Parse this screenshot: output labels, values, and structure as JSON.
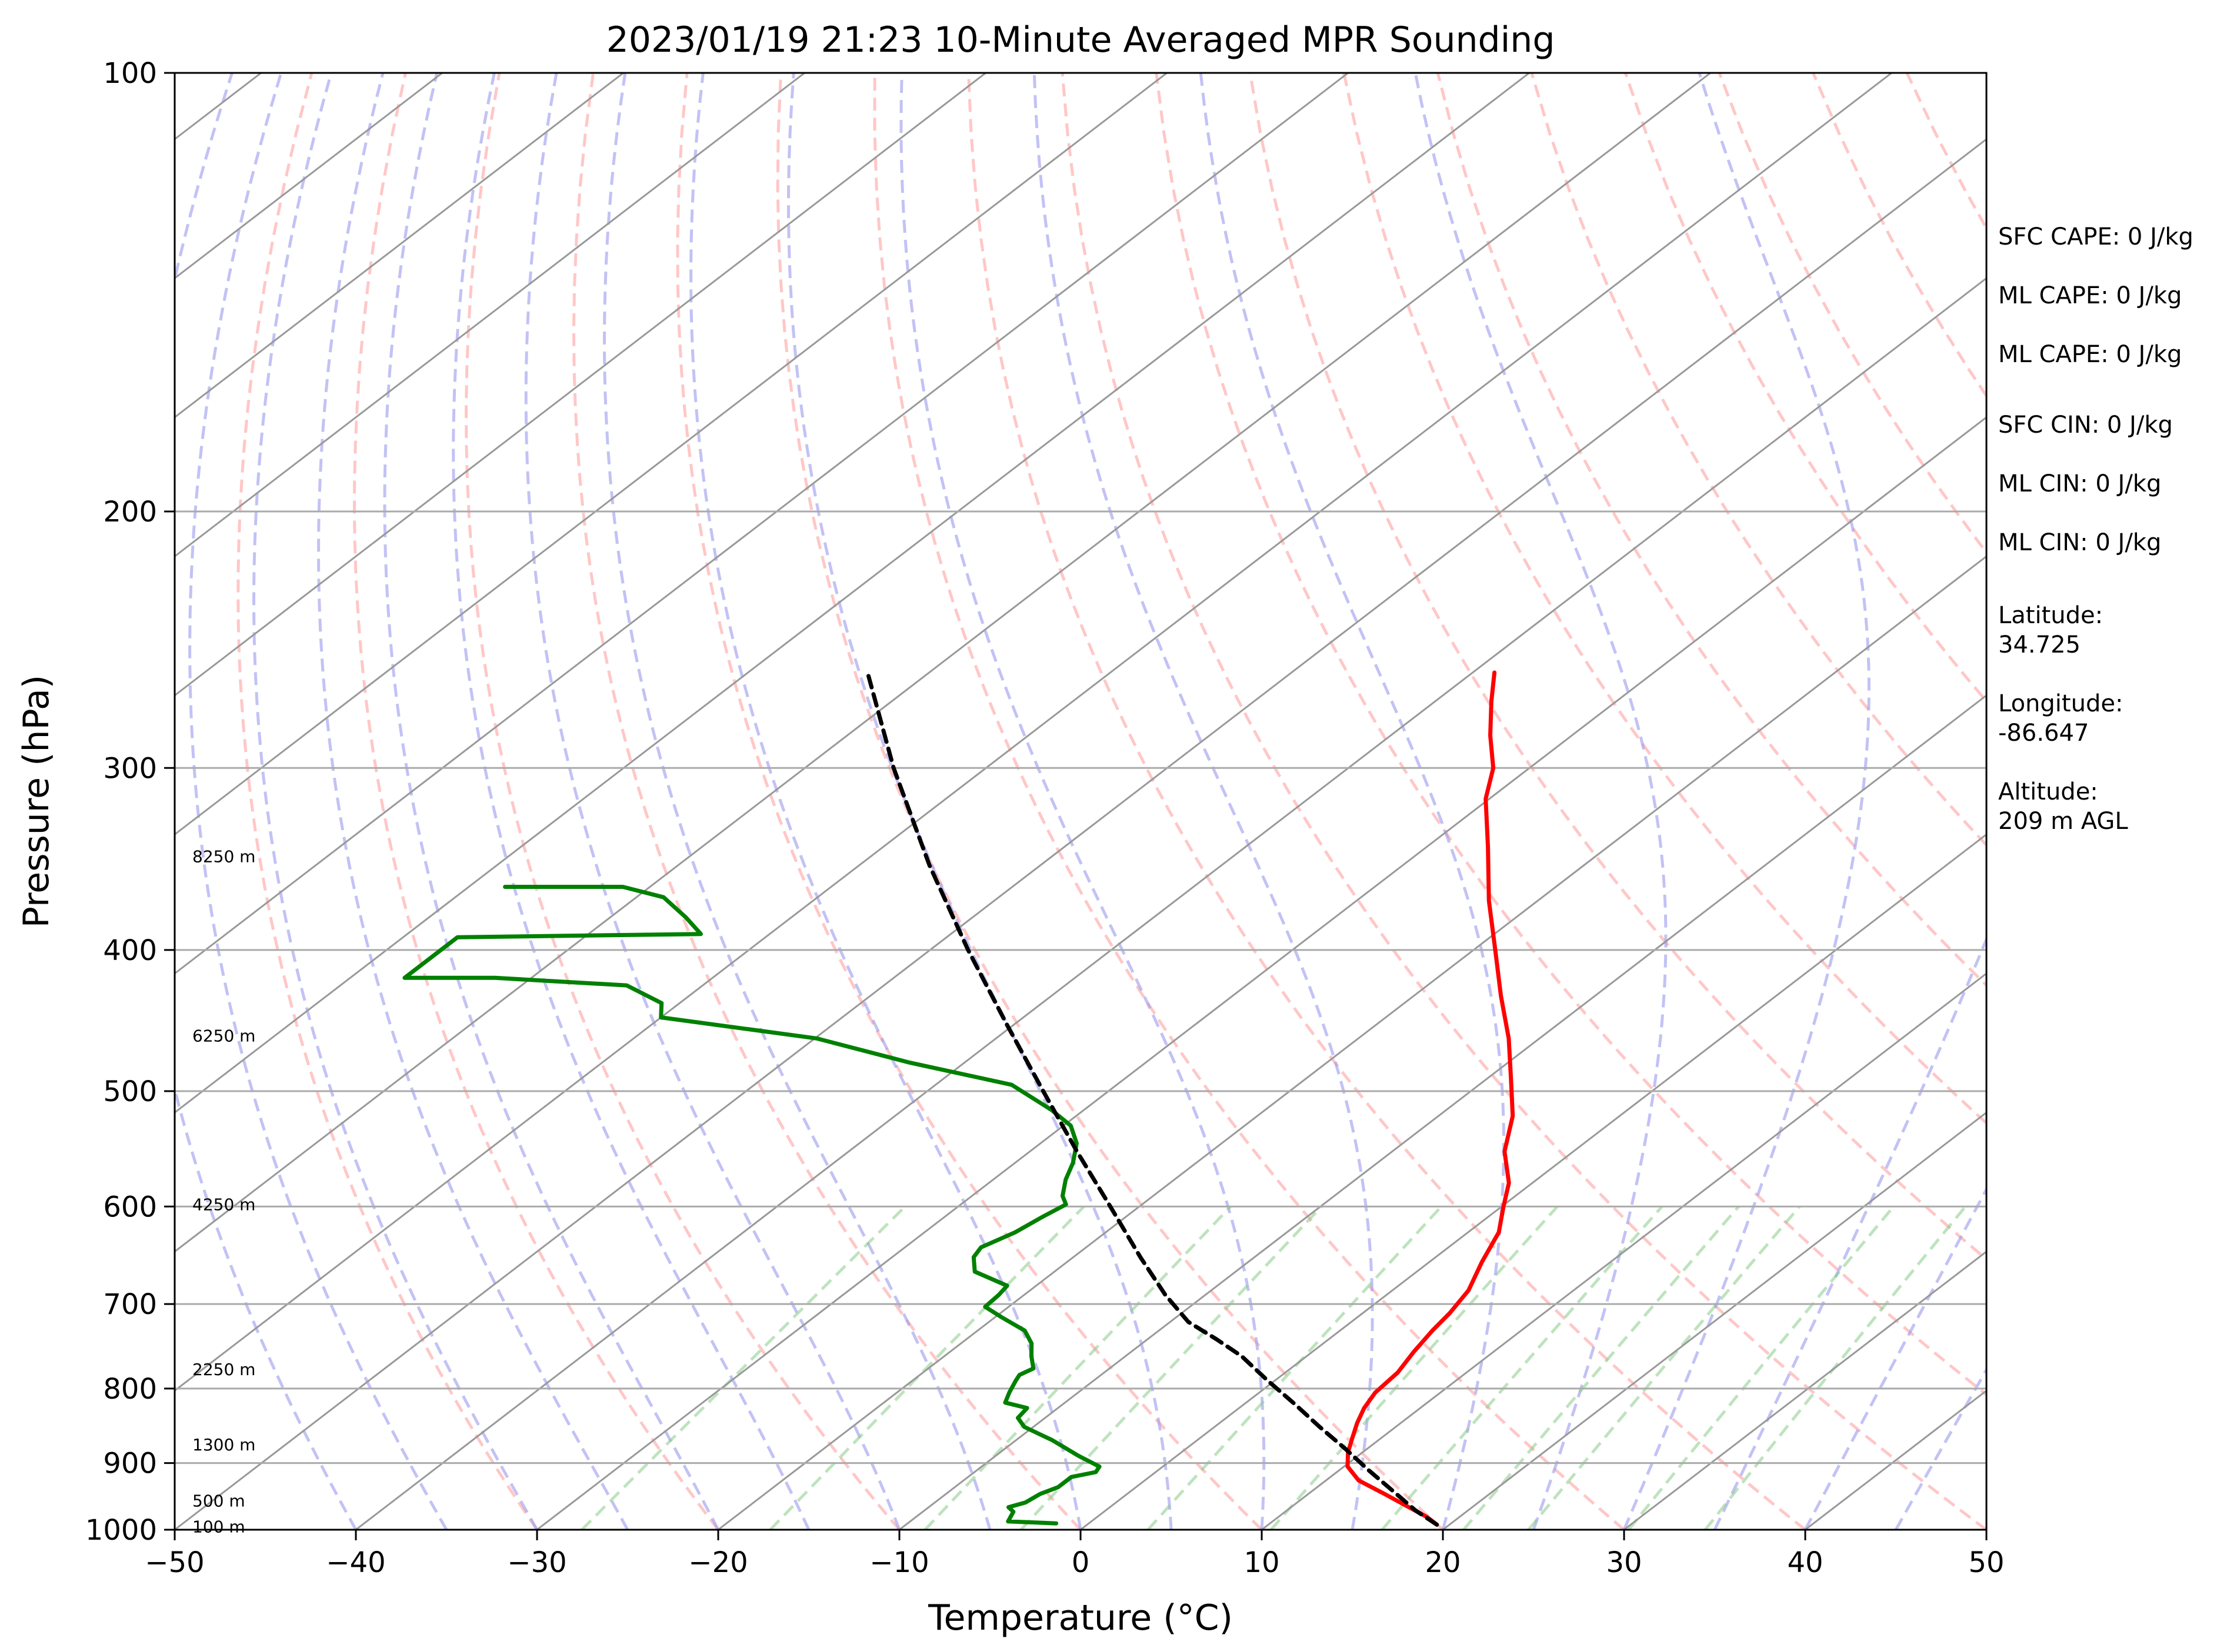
{
  "chart_data": {
    "type": "line",
    "subtype": "skew-T log-P",
    "title": "2023/01/19 21:23 10-Minute Averaged MPR Sounding",
    "xlabel": "Temperature (°C)",
    "ylabel": "Pressure (hPa)",
    "xlim": [
      -50,
      50
    ],
    "ylim": [
      1000,
      100
    ],
    "yscale": "log",
    "x_ticks": [
      "−50",
      "−40",
      "−30",
      "−20",
      "−10",
      "0",
      "10",
      "20",
      "30",
      "40",
      "50"
    ],
    "y_ticks": [
      "100",
      "200",
      "300",
      "400",
      "500",
      "600",
      "700",
      "800",
      "900",
      "1000"
    ],
    "grid": true,
    "colors": {
      "temperature": "#ff0000",
      "dewpoint": "#008000",
      "parcel": "#000000",
      "dry_adiabats": "#ff9999",
      "moist_adiabats": "#9999ee",
      "mixing_ratio": "#88cc88",
      "isotherms": "#999999"
    },
    "height_labels": [
      {
        "text": "8250 m",
        "p": 345
      },
      {
        "text": "6250 m",
        "p": 458
      },
      {
        "text": "4250 m",
        "p": 598
      },
      {
        "text": "2250 m",
        "p": 776
      },
      {
        "text": "1300 m",
        "p": 874
      },
      {
        "text": "500 m",
        "p": 955
      },
      {
        "text": "100 m",
        "p": 995
      }
    ],
    "series": [
      {
        "key": "temperature",
        "values": [
          {
            "p": 992,
            "t": 19.3
          },
          {
            "p": 980,
            "t": 18.2
          },
          {
            "p": 965,
            "t": 16.5
          },
          {
            "p": 945,
            "t": 14.2
          },
          {
            "p": 925,
            "t": 11.8
          },
          {
            "p": 905,
            "t": 10.2
          },
          {
            "p": 885,
            "t": 9.2
          },
          {
            "p": 865,
            "t": 8.4
          },
          {
            "p": 845,
            "t": 7.6
          },
          {
            "p": 825,
            "t": 6.9
          },
          {
            "p": 805,
            "t": 6.4
          },
          {
            "p": 780,
            "t": 6.2
          },
          {
            "p": 755,
            "t": 5.6
          },
          {
            "p": 730,
            "t": 5.1
          },
          {
            "p": 710,
            "t": 4.8
          },
          {
            "p": 685,
            "t": 4.2
          },
          {
            "p": 655,
            "t": 2.9
          },
          {
            "p": 625,
            "t": 1.7
          },
          {
            "p": 600,
            "t": 0.1
          },
          {
            "p": 578,
            "t": -1.3
          },
          {
            "p": 550,
            "t": -3.8
          },
          {
            "p": 520,
            "t": -5.9
          },
          {
            "p": 490,
            "t": -8.7
          },
          {
            "p": 460,
            "t": -11.7
          },
          {
            "p": 430,
            "t": -15.2
          },
          {
            "p": 400,
            "t": -18.8
          },
          {
            "p": 370,
            "t": -22.7
          },
          {
            "p": 340,
            "t": -26.6
          },
          {
            "p": 315,
            "t": -30.2
          },
          {
            "p": 300,
            "t": -32.0
          },
          {
            "p": 285,
            "t": -34.5
          },
          {
            "p": 270,
            "t": -36.9
          },
          {
            "p": 258,
            "t": -38.8
          }
        ]
      },
      {
        "key": "dewpoint",
        "values": [
          {
            "p": 990,
            "t": -1.8
          },
          {
            "p": 987,
            "t": -4.6
          },
          {
            "p": 972,
            "t": -5.0
          },
          {
            "p": 965,
            "t": -5.6
          },
          {
            "p": 958,
            "t": -5.0
          },
          {
            "p": 945,
            "t": -4.8
          },
          {
            "p": 935,
            "t": -4.3
          },
          {
            "p": 920,
            "t": -4.3
          },
          {
            "p": 913,
            "t": -3.3
          },
          {
            "p": 905,
            "t": -3.5
          },
          {
            "p": 890,
            "t": -5.4
          },
          {
            "p": 868,
            "t": -8.0
          },
          {
            "p": 850,
            "t": -10.5
          },
          {
            "p": 838,
            "t": -11.5
          },
          {
            "p": 825,
            "t": -11.7
          },
          {
            "p": 818,
            "t": -13.3
          },
          {
            "p": 805,
            "t": -13.8
          },
          {
            "p": 790,
            "t": -14.3
          },
          {
            "p": 783,
            "t": -14.5
          },
          {
            "p": 775,
            "t": -14.2
          },
          {
            "p": 760,
            "t": -15.2
          },
          {
            "p": 745,
            "t": -16.1
          },
          {
            "p": 730,
            "t": -17.4
          },
          {
            "p": 715,
            "t": -19.6
          },
          {
            "p": 703,
            "t": -21.3
          },
          {
            "p": 690,
            "t": -21.4
          },
          {
            "p": 680,
            "t": -21.6
          },
          {
            "p": 665,
            "t": -24.4
          },
          {
            "p": 650,
            "t": -25.5
          },
          {
            "p": 640,
            "t": -25.8
          },
          {
            "p": 625,
            "t": -25.0
          },
          {
            "p": 610,
            "t": -24.6
          },
          {
            "p": 598,
            "t": -24.2
          },
          {
            "p": 590,
            "t": -25.0
          },
          {
            "p": 575,
            "t": -26.0
          },
          {
            "p": 560,
            "t": -26.8
          },
          {
            "p": 543,
            "t": -28.0
          },
          {
            "p": 528,
            "t": -29.6
          },
          {
            "p": 515,
            "t": -31.8
          },
          {
            "p": 495,
            "t": -35.8
          },
          {
            "p": 478,
            "t": -43.0
          },
          {
            "p": 460,
            "t": -49.9
          },
          {
            "p": 445,
            "t": -60.0
          },
          {
            "p": 435,
            "t": -61.0
          },
          {
            "p": 423,
            "t": -64.2
          },
          {
            "p": 418,
            "t": -72.0
          },
          {
            "p": 418,
            "t": -77.0
          },
          {
            "p": 392,
            "t": -77.0
          },
          {
            "p": 390,
            "t": -63.8
          },
          {
            "p": 380,
            "t": -65.8
          },
          {
            "p": 368,
            "t": -68.5
          },
          {
            "p": 362,
            "t": -71.5
          },
          {
            "p": 362,
            "t": -78.0
          }
        ]
      },
      {
        "key": "parcel",
        "values": [
          {
            "p": 992,
            "t": 19.3
          },
          {
            "p": 970,
            "t": 17.1
          },
          {
            "p": 940,
            "t": 14.4
          },
          {
            "p": 910,
            "t": 11.6
          },
          {
            "p": 880,
            "t": 8.8
          },
          {
            "p": 850,
            "t": 5.8
          },
          {
            "p": 820,
            "t": 2.8
          },
          {
            "p": 790,
            "t": -0.4
          },
          {
            "p": 760,
            "t": -3.6
          },
          {
            "p": 740,
            "t": -6.2
          },
          {
            "p": 720,
            "t": -9.0
          },
          {
            "p": 690,
            "t": -12.2
          },
          {
            "p": 650,
            "t": -16.3
          },
          {
            "p": 600,
            "t": -21.6
          },
          {
            "p": 550,
            "t": -27.4
          },
          {
            "p": 500,
            "t": -33.6
          },
          {
            "p": 450,
            "t": -40.4
          },
          {
            "p": 400,
            "t": -47.9
          },
          {
            "p": 350,
            "t": -56.1
          },
          {
            "p": 300,
            "t": -65.1
          },
          {
            "p": 258,
            "t": -73.4
          }
        ]
      }
    ]
  },
  "info_panel": {
    "sfc_cape": "SFC CAPE: 0 J/kg",
    "ml_cape_1": "ML CAPE: 0 J/kg",
    "ml_cape_2": "ML CAPE: 0 J/kg",
    "sfc_cin": "SFC CIN: 0 J/kg",
    "ml_cin_1": "ML CIN: 0 J/kg",
    "ml_cin_2": "ML CIN: 0 J/kg",
    "latitude_label": "Latitude:",
    "latitude_value": "34.725",
    "longitude_label": "Longitude:",
    "longitude_value": "-86.647",
    "altitude_label": "Altitude:",
    "altitude_value": "209 m AGL"
  }
}
